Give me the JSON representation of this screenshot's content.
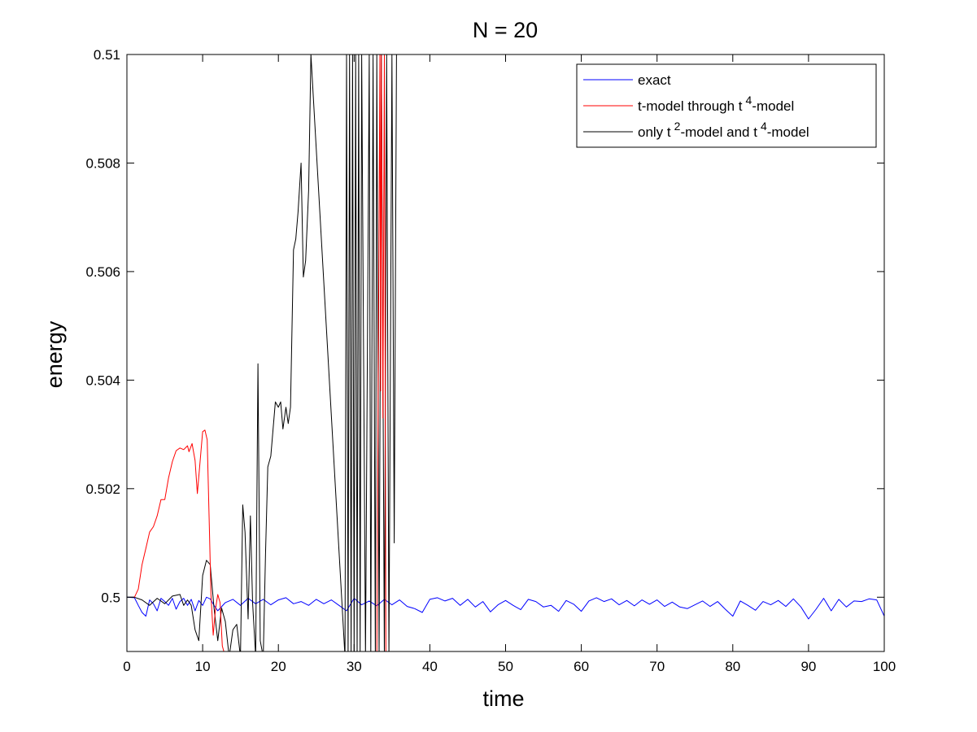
{
  "chart_data": {
    "type": "line",
    "title": "N = 20",
    "xlabel": "time",
    "ylabel": "energy",
    "xlim": [
      0,
      100
    ],
    "ylim": [
      0.499,
      0.51
    ],
    "xticks": [
      0,
      10,
      20,
      30,
      40,
      50,
      60,
      70,
      80,
      90,
      100
    ],
    "xtick_labels": [
      "0",
      "10",
      "20",
      "30",
      "40",
      "50",
      "60",
      "70",
      "80",
      "90",
      "100"
    ],
    "yticks": [
      0.5,
      0.502,
      0.504,
      0.506,
      0.508,
      0.51
    ],
    "ytick_labels": [
      "0.5",
      "0.502",
      "0.504",
      "0.506",
      "0.508",
      "0.51"
    ],
    "grid": false,
    "legend_position": "top-right",
    "series": [
      {
        "name": "exact",
        "legend": {
          "base": "exact",
          "sup": "",
          "rest": "",
          "sup2": "",
          "tail": ""
        },
        "color": "#0000ff",
        "x": [
          0,
          1,
          1.5,
          2,
          2.5,
          3,
          3.5,
          4,
          4.5,
          5,
          5.5,
          6,
          6.5,
          7,
          7.5,
          8,
          8.5,
          9,
          9.5,
          10,
          10.5,
          11,
          11.5,
          12,
          13,
          14,
          15,
          16,
          17,
          18,
          19,
          20,
          21,
          22,
          23,
          24,
          25,
          26,
          27,
          28,
          29,
          30,
          31,
          32,
          33,
          34,
          35,
          36,
          37,
          38,
          39,
          40,
          41,
          42,
          43,
          44,
          45,
          46,
          47,
          48,
          49,
          50,
          51,
          52,
          53,
          54,
          55,
          56,
          57,
          58,
          59,
          60,
          61,
          62,
          63,
          64,
          65,
          66,
          67,
          68,
          69,
          70,
          71,
          72,
          73,
          74,
          75,
          76,
          77,
          78,
          79,
          80,
          81,
          82,
          83,
          84,
          85,
          86,
          87,
          88,
          89,
          90,
          91,
          92,
          93,
          94,
          95,
          96,
          97,
          98,
          99,
          100
        ],
        "y": [
          0.5,
          0.49999,
          0.49985,
          0.49972,
          0.49965,
          0.49995,
          0.49988,
          0.49975,
          0.49998,
          0.49992,
          0.49985,
          0.49998,
          0.49978,
          0.49992,
          0.49998,
          0.49985,
          0.49996,
          0.49975,
          0.49994,
          0.49985,
          0.5,
          0.49997,
          0.49985,
          0.49975,
          0.4999,
          0.49996,
          0.49985,
          0.49998,
          0.49988,
          0.49996,
          0.49986,
          0.49995,
          0.49999,
          0.49988,
          0.49992,
          0.49985,
          0.49996,
          0.49988,
          0.49995,
          0.49985,
          0.49975,
          0.49998,
          0.49986,
          0.49993,
          0.49984,
          0.49996,
          0.49986,
          0.49995,
          0.49983,
          0.49979,
          0.49972,
          0.49996,
          0.49999,
          0.49993,
          0.49998,
          0.49985,
          0.49996,
          0.49982,
          0.49992,
          0.49973,
          0.49986,
          0.49994,
          0.49985,
          0.49977,
          0.49996,
          0.49992,
          0.49982,
          0.49985,
          0.49974,
          0.49994,
          0.49987,
          0.49974,
          0.49993,
          0.49999,
          0.49992,
          0.49997,
          0.49986,
          0.49994,
          0.49984,
          0.49995,
          0.49987,
          0.49995,
          0.49983,
          0.49991,
          0.49982,
          0.49979,
          0.49986,
          0.49993,
          0.49983,
          0.49992,
          0.49978,
          0.49965,
          0.49993,
          0.49985,
          0.49976,
          0.49992,
          0.49986,
          0.49994,
          0.49983,
          0.49997,
          0.49982,
          0.4996,
          0.49978,
          0.49998,
          0.49975,
          0.49996,
          0.49982,
          0.49993,
          0.49992,
          0.49997,
          0.49995,
          0.49965
        ]
      },
      {
        "name": "t-model through t 4-model",
        "legend": {
          "base": "t-model through t",
          "sup": "4",
          "rest": "-model",
          "sup2": "",
          "tail": ""
        },
        "color": "#ff0000",
        "x": [
          1,
          1.5,
          2,
          2.5,
          3,
          3.5,
          4,
          4.5,
          5,
          5.5,
          6,
          6.5,
          7,
          7.5,
          8,
          8.2,
          8.6,
          9,
          9.3,
          9.6,
          10,
          10.3,
          10.6,
          10.9,
          11.1,
          11.4,
          11.7,
          12,
          12.3,
          12.6,
          13,
          33,
          33.2,
          33.4,
          33.5,
          33.6,
          33.8,
          34,
          34.2
        ],
        "y": [
          0.5,
          0.50015,
          0.5006,
          0.5009,
          0.5012,
          0.5013,
          0.5015,
          0.5018,
          0.5018,
          0.5022,
          0.5025,
          0.5027,
          0.50275,
          0.50272,
          0.50279,
          0.50268,
          0.50283,
          0.50252,
          0.50191,
          0.5024,
          0.50305,
          0.50308,
          0.5029,
          0.5012,
          0.50005,
          0.4993,
          0.49978,
          0.50005,
          0.4999,
          0.4991,
          0.4989,
          0.4989,
          0.50435,
          0.51,
          0.5038,
          0.51,
          0.5033,
          0.51,
          0.4989
        ]
      },
      {
        "name": "only t 2-model and t 4-model",
        "legend": {
          "base": "only t",
          "sup": "2",
          "rest": "-model and t",
          "sup2": "4",
          "tail": "-model"
        },
        "color": "#000000",
        "x": [
          0,
          1,
          2,
          3,
          4,
          5,
          6,
          7,
          7.5,
          8,
          8.5,
          9,
          9.5,
          10,
          10.5,
          11,
          11.5,
          12,
          12.5,
          13,
          13.5,
          14,
          14.5,
          15,
          15.3,
          15.6,
          16,
          16.3,
          16.6,
          17,
          17.3,
          17.6,
          18,
          18.3,
          18.6,
          19,
          19.3,
          19.6,
          20,
          20.3,
          20.6,
          21,
          21.3,
          21.6,
          22,
          22.3,
          22.6,
          23,
          23.3,
          23.6,
          24,
          24.3,
          28.8,
          29,
          29.2,
          29.4,
          29.6,
          29.8,
          30,
          30.2,
          30.4,
          30.6,
          30.8,
          31,
          31.5,
          32,
          32.2,
          32.5,
          32.8,
          33,
          33.3,
          33.6,
          34,
          34.3,
          34.6,
          35,
          35.3,
          35.6
        ],
        "y": [
          0.5,
          0.5,
          0.49995,
          0.49985,
          0.49998,
          0.49988,
          0.50002,
          0.50005,
          0.49985,
          0.49995,
          0.49985,
          0.4994,
          0.4992,
          0.5004,
          0.50068,
          0.5006,
          0.4998,
          0.4992,
          0.4998,
          0.49955,
          0.4989,
          0.4994,
          0.4995,
          0.4989,
          0.5017,
          0.5012,
          0.4996,
          0.5015,
          0.4999,
          0.4989,
          0.5043,
          0.4992,
          0.4989,
          0.5008,
          0.5024,
          0.5026,
          0.5031,
          0.5036,
          0.5035,
          0.5036,
          0.5031,
          0.5035,
          0.5032,
          0.5035,
          0.5064,
          0.5066,
          0.5071,
          0.508,
          0.5059,
          0.5062,
          0.5075,
          0.51,
          0.4989,
          0.51,
          0.4989,
          0.51,
          0.4989,
          0.51,
          0.4989,
          0.51,
          0.4989,
          0.51,
          0.4989,
          0.51,
          0.4989,
          0.51,
          0.4989,
          0.51,
          0.4989,
          0.51,
          0.4989,
          0.51,
          0.4989,
          0.51,
          0.4989,
          0.51,
          0.501,
          0.51
        ]
      }
    ]
  }
}
